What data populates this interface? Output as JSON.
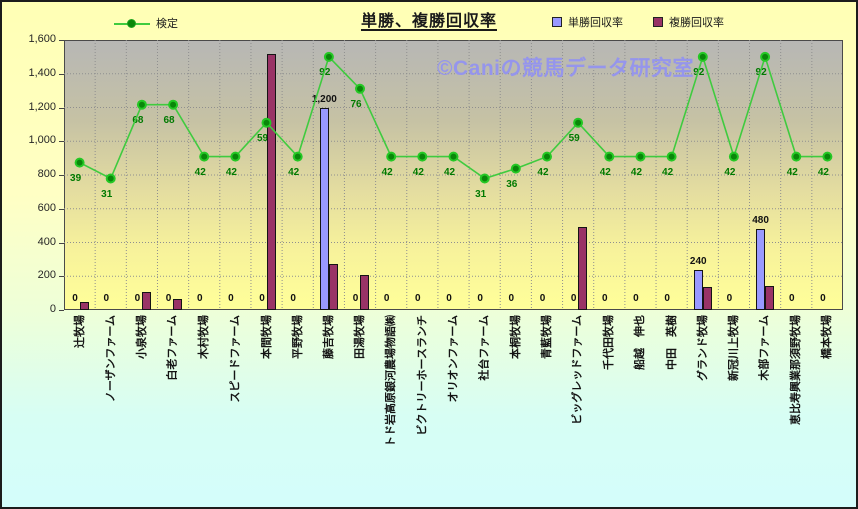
{
  "header": {
    "title": "単勝、複勝回収率"
  },
  "watermark": {
    "text": "©Caniの競馬データ研究室",
    "color": "#9595EC"
  },
  "legend_line": {
    "label": "検定"
  },
  "legend": {
    "series": [
      {
        "label": "単勝回収率",
        "color": "#9999FF"
      },
      {
        "label": "複勝回収率",
        "color": "#993366"
      }
    ]
  },
  "chart_data": {
    "type": "bar",
    "title": "単勝、複勝回収率",
    "categories": [
      "辻牧場",
      "ノーザンファーム",
      "小泉牧場",
      "白老ファーム",
      "木村牧場",
      "スピードファーム",
      "本間牧場",
      "平野牧場",
      "藤吉牧場",
      "田湯牧場",
      "トド岩高原銀河農場物語㈱",
      "ビクトリーホースランチ",
      "オリオンファーム",
      "社台ファーム",
      "本桐牧場",
      "青藍牧場",
      "ビッグレッドファーム",
      "千代田牧場",
      "船越　伸也",
      "中田　英樹",
      "グランド牧場",
      "新冠川上牧場",
      "木部ファーム",
      "恵比寿興業那須野牧場",
      "橋本牧場"
    ],
    "series": [
      {
        "name": "単勝回収率",
        "type": "bar",
        "color": "#9999FF",
        "values": [
          0,
          0,
          0,
          0,
          0,
          0,
          0,
          0,
          1200,
          0,
          0,
          0,
          0,
          0,
          0,
          0,
          0,
          0,
          0,
          0,
          240,
          0,
          480,
          0,
          0
        ]
      },
      {
        "name": "複勝回収率",
        "type": "bar",
        "color": "#993366",
        "values": [
          45,
          0,
          105,
          65,
          0,
          0,
          1520,
          0,
          270,
          210,
          0,
          0,
          0,
          0,
          0,
          0,
          490,
          0,
          0,
          0,
          135,
          0,
          145,
          0,
          0
        ]
      },
      {
        "name": "検定",
        "type": "line",
        "axis": "secondary",
        "color": "#3FCB3F",
        "marker_color": "#0A870A",
        "label_color": "#007A00",
        "values": [
          39,
          31,
          68,
          68,
          42,
          42,
          59,
          42,
          92,
          76,
          42,
          42,
          42,
          31,
          36,
          42,
          59,
          42,
          42,
          42,
          92,
          42,
          92,
          42,
          42
        ]
      }
    ],
    "y_axis": {
      "min": 0,
      "max": 1600,
      "step": 200,
      "tick_labels": [
        "0",
        "200",
        "400",
        "600",
        "800",
        "1,000",
        "1,200",
        "1,400",
        "1,600"
      ]
    },
    "secondary_axis_mapping": {
      "slope": 11.82,
      "intercept": 412.6,
      "note": "line value v is drawn at primary-axis height slope*v+intercept"
    },
    "grid": "dotted",
    "legend_position": "top"
  }
}
